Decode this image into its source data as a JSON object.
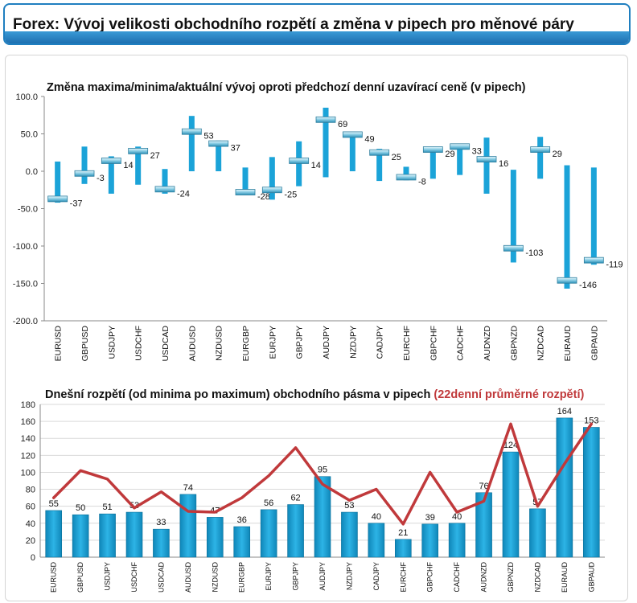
{
  "header": {
    "title": "Forex: Vývoj velikosti obchodního rozpětí a změna v pipech pro měnové páry"
  },
  "colors": {
    "header_border": "#1f7fc0",
    "bar": "#1ba3d8",
    "average_line": "#c0393b",
    "highlight_title": "#c0393b"
  },
  "chart_data": [
    {
      "type": "bar",
      "title": "Změna maxima/minima/aktuální vývoj oproti předchozí denní uzavírací ceně (v pipech)",
      "categories": [
        "EURUSD",
        "GBPUSD",
        "USDJPY",
        "USDCHF",
        "USDCAD",
        "AUDUSD",
        "NZDUSD",
        "EURGBP",
        "EURJPY",
        "GBPJPY",
        "AUDJPY",
        "NZDJPY",
        "CADJPY",
        "EURCHF",
        "GBPCHF",
        "CADCHF",
        "AUDNZD",
        "GBPNZD",
        "NZDCAD",
        "EURAUD",
        "GBPAUD"
      ],
      "high": [
        13,
        33,
        20,
        33,
        3,
        74,
        41,
        5,
        19,
        40,
        85,
        53,
        30,
        6,
        30,
        35,
        45,
        2,
        46,
        8,
        5
      ],
      "low": [
        -42,
        -17,
        -30,
        -18,
        -30,
        0,
        0,
        -30,
        -38,
        -20,
        -8,
        0,
        -13,
        -12,
        -10,
        -5,
        -30,
        -122,
        -10,
        -157,
        -125
      ],
      "current": [
        -37,
        -3,
        14,
        27,
        -24,
        53,
        37,
        -28,
        -25,
        14,
        69,
        49,
        25,
        -8,
        29,
        33,
        16,
        -103,
        29,
        -146,
        -119
      ],
      "ylim": [
        -200,
        100
      ],
      "yticks": [
        "100.0",
        "50.0",
        "0.0",
        "-50.0",
        "-100.0",
        "-150.0",
        "-200.0"
      ]
    },
    {
      "type": "bar",
      "title": "Dnešní rozpětí (od minima po maximum) obchodního pásma v pipech",
      "title_highlight": "(22denní průměrné rozpětí)",
      "categories": [
        "EURUSD",
        "GBPUSD",
        "USDJPY",
        "USDCHF",
        "USDCAD",
        "AUDUSD",
        "NZDUSD",
        "EURGBP",
        "EURJPY",
        "GBPJPY",
        "AUDJPY",
        "NZDJPY",
        "CADJPY",
        "EURCHF",
        "GBPCHF",
        "CADCHF",
        "AUDNZD",
        "GBPNZD",
        "NZDCAD",
        "EURAUD",
        "GBPAUD"
      ],
      "values": [
        55,
        50,
        51,
        53,
        33,
        74,
        47,
        36,
        56,
        62,
        95,
        53,
        40,
        21,
        39,
        40,
        76,
        124,
        57,
        164,
        153
      ],
      "average": [
        70,
        102,
        92,
        58,
        77,
        54,
        53,
        70,
        96,
        129,
        86,
        67,
        80,
        39,
        100,
        53,
        66,
        157,
        60,
        110,
        157
      ],
      "ylim": [
        0,
        180
      ],
      "yticks": [
        "180",
        "160",
        "140",
        "120",
        "100",
        "80",
        "60",
        "40",
        "20",
        "0"
      ]
    }
  ]
}
